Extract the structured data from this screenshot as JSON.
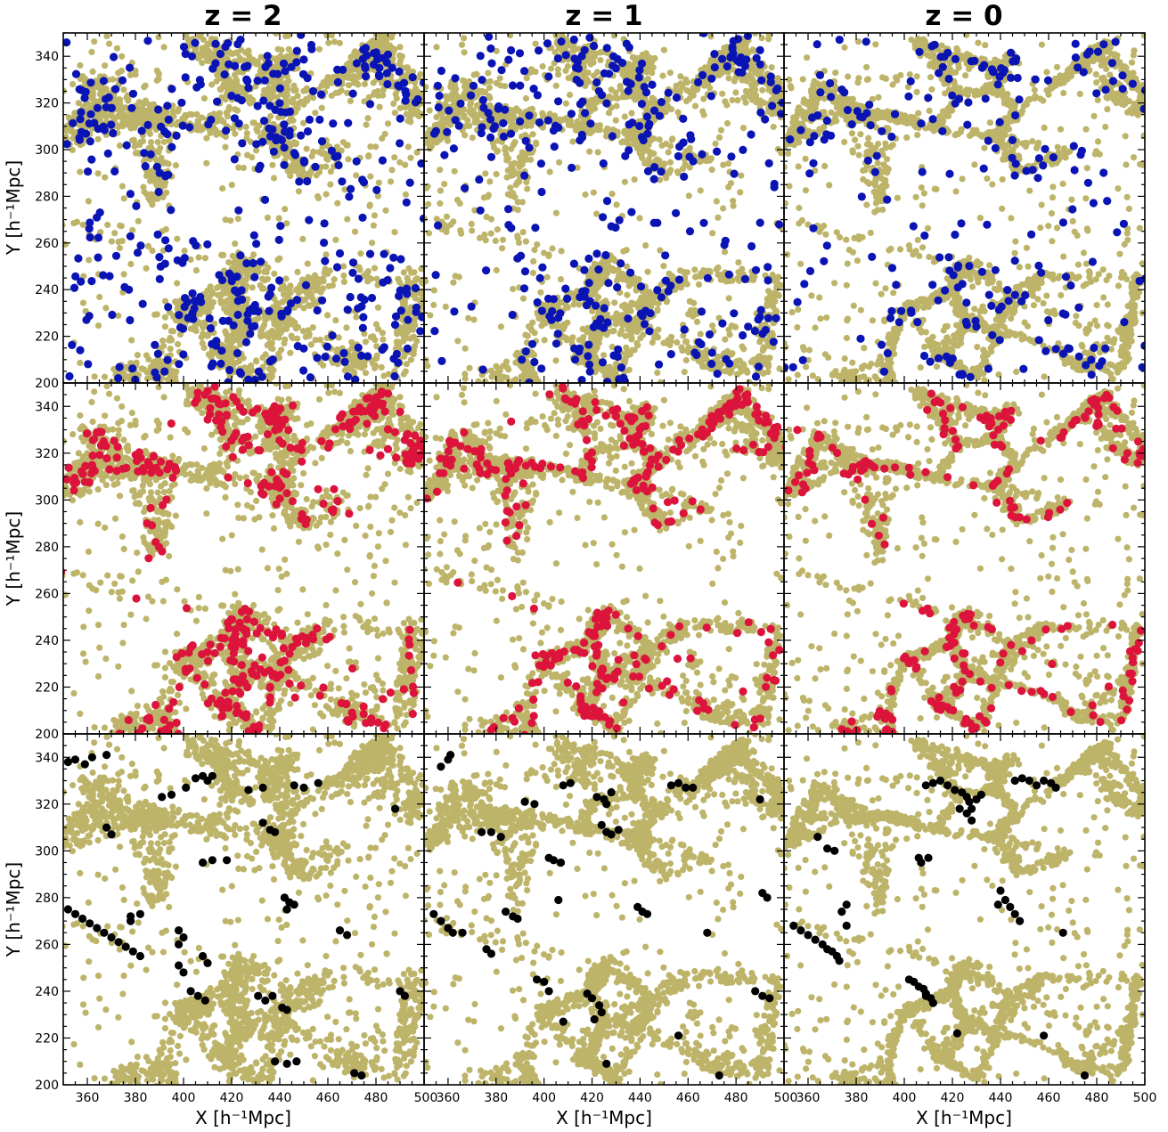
{
  "colors": {
    "background_particles": "#bdb46a",
    "row1_markers": "#0a14b4",
    "row2_markers": "#dc143c",
    "row3_markers": "#000000"
  },
  "columns": [
    {
      "title": "z = 2"
    },
    {
      "title": "z = 1"
    },
    {
      "title": "z = 0"
    }
  ],
  "rows": [
    {
      "ylabel": "Y  [h⁻¹Mpc]"
    },
    {
      "ylabel": "Y  [h⁻¹Mpc]"
    },
    {
      "ylabel": "Y  [h⁻¹Mpc]"
    }
  ],
  "xlabel": "X  [h⁻¹Mpc]",
  "chart_data": {
    "type": "scatter",
    "layout": "3x3 grid, shared axes, no gaps",
    "xlim": [
      350,
      500
    ],
    "ylim": [
      200,
      350
    ],
    "x_ticks": [
      360,
      380,
      400,
      420,
      440,
      460,
      480,
      500
    ],
    "y_ticks": [
      200,
      220,
      240,
      260,
      280,
      300,
      320,
      340
    ],
    "grid": false,
    "legend": "none",
    "series_per_panel": [
      {
        "name": "",
        "role": "background",
        "color_key": "background_particles"
      },
      {
        "name": "",
        "role": "highlight",
        "color_key": "row_markers"
      }
    ],
    "panels": [
      {
        "row": 0,
        "col": 0,
        "title": "z = 2",
        "marker_color": "#0a14b4",
        "highlight_count": 430
      },
      {
        "row": 0,
        "col": 1,
        "title": "z = 1",
        "marker_color": "#0a14b4",
        "highlight_count": 340
      },
      {
        "row": 0,
        "col": 2,
        "title": "z = 0",
        "marker_color": "#0a14b4",
        "highlight_count": 230
      },
      {
        "row": 1,
        "col": 0,
        "title": "z = 2",
        "marker_color": "#dc143c",
        "highlight_count": 420
      },
      {
        "row": 1,
        "col": 1,
        "title": "z = 1",
        "marker_color": "#dc143c",
        "highlight_count": 330
      },
      {
        "row": 1,
        "col": 2,
        "title": "z = 0",
        "marker_color": "#dc143c",
        "highlight_count": 250
      },
      {
        "row": 2,
        "col": 0,
        "title": "z = 2",
        "marker_color": "#000000",
        "highlight_points": [
          [
            352,
            338
          ],
          [
            355,
            339
          ],
          [
            362,
            340
          ],
          [
            368,
            341
          ],
          [
            359,
            337
          ],
          [
            391,
            323
          ],
          [
            395,
            324
          ],
          [
            401,
            327
          ],
          [
            405,
            331
          ],
          [
            408,
            332
          ],
          [
            410,
            330
          ],
          [
            412,
            332
          ],
          [
            427,
            326
          ],
          [
            433,
            327
          ],
          [
            446,
            328
          ],
          [
            450,
            327
          ],
          [
            456,
            329
          ],
          [
            488,
            318
          ],
          [
            433,
            312
          ],
          [
            436,
            309
          ],
          [
            438,
            308
          ],
          [
            368,
            310
          ],
          [
            370,
            307
          ],
          [
            408,
            295
          ],
          [
            412,
            296
          ],
          [
            418,
            296
          ],
          [
            352,
            275
          ],
          [
            355,
            273
          ],
          [
            358,
            271
          ],
          [
            361,
            269
          ],
          [
            364,
            267
          ],
          [
            367,
            265
          ],
          [
            370,
            263
          ],
          [
            373,
            261
          ],
          [
            376,
            259
          ],
          [
            379,
            257
          ],
          [
            382,
            255
          ],
          [
            378,
            272
          ],
          [
            382,
            273
          ],
          [
            378,
            270
          ],
          [
            442,
            280
          ],
          [
            444,
            278
          ],
          [
            446,
            277
          ],
          [
            443,
            275
          ],
          [
            398,
            266
          ],
          [
            400,
            263
          ],
          [
            398,
            260
          ],
          [
            398,
            251
          ],
          [
            400,
            248
          ],
          [
            408,
            255
          ],
          [
            410,
            252
          ],
          [
            403,
            240
          ],
          [
            406,
            238
          ],
          [
            409,
            236
          ],
          [
            431,
            238
          ],
          [
            434,
            236
          ],
          [
            437,
            238
          ],
          [
            441,
            233
          ],
          [
            443,
            232
          ],
          [
            465,
            266
          ],
          [
            468,
            264
          ],
          [
            490,
            240
          ],
          [
            492,
            238
          ],
          [
            438,
            210
          ],
          [
            443,
            209
          ],
          [
            447,
            210
          ],
          [
            471,
            205
          ],
          [
            474,
            204
          ]
        ]
      },
      {
        "row": 2,
        "col": 1,
        "title": "z = 1",
        "marker_color": "#000000",
        "highlight_points": [
          [
            357,
            336
          ],
          [
            360,
            339
          ],
          [
            361,
            341
          ],
          [
            374,
            308
          ],
          [
            378,
            308
          ],
          [
            382,
            306
          ],
          [
            392,
            321
          ],
          [
            396,
            320
          ],
          [
            408,
            328
          ],
          [
            411,
            329
          ],
          [
            422,
            323
          ],
          [
            425,
            322
          ],
          [
            428,
            325
          ],
          [
            426,
            320
          ],
          [
            453,
            328
          ],
          [
            456,
            329
          ],
          [
            459,
            327
          ],
          [
            462,
            327
          ],
          [
            490,
            322
          ],
          [
            424,
            311
          ],
          [
            426,
            308
          ],
          [
            428,
            307
          ],
          [
            431,
            309
          ],
          [
            402,
            297
          ],
          [
            404,
            296
          ],
          [
            407,
            295
          ],
          [
            354,
            273
          ],
          [
            357,
            270
          ],
          [
            360,
            267
          ],
          [
            362,
            265
          ],
          [
            366,
            265
          ],
          [
            376,
            258
          ],
          [
            378,
            256
          ],
          [
            384,
            274
          ],
          [
            387,
            272
          ],
          [
            389,
            271
          ],
          [
            406,
            279
          ],
          [
            439,
            276
          ],
          [
            441,
            274
          ],
          [
            443,
            273
          ],
          [
            491,
            282
          ],
          [
            493,
            280
          ],
          [
            468,
            265
          ],
          [
            397,
            245
          ],
          [
            400,
            244
          ],
          [
            402,
            240
          ],
          [
            418,
            239
          ],
          [
            420,
            237
          ],
          [
            423,
            234
          ],
          [
            424,
            231
          ],
          [
            421,
            228
          ],
          [
            456,
            221
          ],
          [
            473,
            204
          ],
          [
            408,
            227
          ],
          [
            426,
            209
          ],
          [
            488,
            240
          ],
          [
            491,
            238
          ],
          [
            494,
            237
          ]
        ]
      },
      {
        "row": 2,
        "col": 2,
        "title": "z = 0",
        "marker_color": "#000000",
        "highlight_points": [
          [
            364,
            306
          ],
          [
            368,
            301
          ],
          [
            371,
            300
          ],
          [
            374,
            274
          ],
          [
            376,
            277
          ],
          [
            354,
            268
          ],
          [
            357,
            266
          ],
          [
            360,
            264
          ],
          [
            363,
            262
          ],
          [
            366,
            260
          ],
          [
            368,
            258
          ],
          [
            370,
            257
          ],
          [
            372,
            255
          ],
          [
            373,
            253
          ],
          [
            376,
            268
          ],
          [
            409,
            328
          ],
          [
            412,
            329
          ],
          [
            415,
            330
          ],
          [
            418,
            328
          ],
          [
            421,
            326
          ],
          [
            424,
            325
          ],
          [
            426,
            323
          ],
          [
            427,
            321
          ],
          [
            428,
            318
          ],
          [
            430,
            322
          ],
          [
            432,
            324
          ],
          [
            423,
            318
          ],
          [
            446,
            330
          ],
          [
            449,
            331
          ],
          [
            452,
            330
          ],
          [
            455,
            328
          ],
          [
            458,
            330
          ],
          [
            461,
            329
          ],
          [
            463,
            327
          ],
          [
            426,
            316
          ],
          [
            428,
            313
          ],
          [
            406,
            297
          ],
          [
            410,
            297
          ],
          [
            407,
            295
          ],
          [
            440,
            283
          ],
          [
            442,
            279
          ],
          [
            444,
            276
          ],
          [
            446,
            273
          ],
          [
            448,
            270
          ],
          [
            439,
            277
          ],
          [
            466,
            265
          ],
          [
            402,
            245
          ],
          [
            404,
            244
          ],
          [
            406,
            242
          ],
          [
            408,
            241
          ],
          [
            409,
            238
          ],
          [
            411,
            237
          ],
          [
            412,
            235
          ],
          [
            409,
            239
          ],
          [
            422,
            222
          ],
          [
            458,
            221
          ],
          [
            475,
            204
          ]
        ]
      }
    ]
  }
}
